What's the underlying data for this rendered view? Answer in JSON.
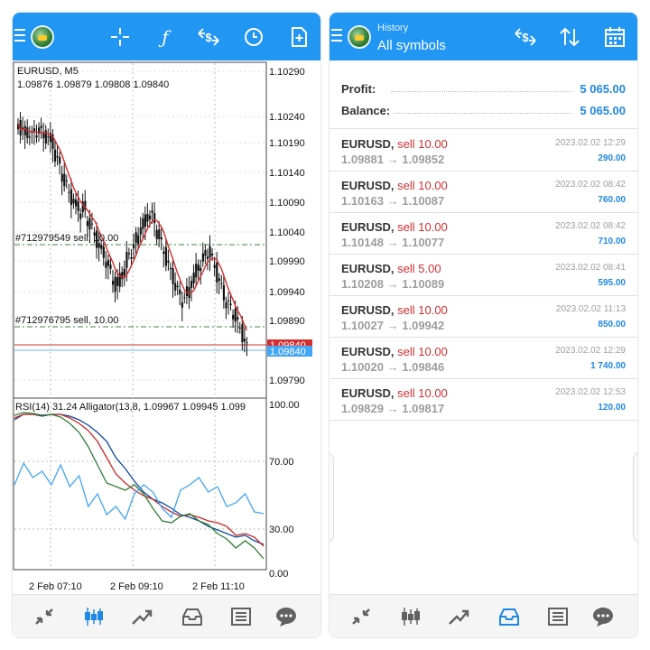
{
  "left": {
    "symbol_line": "EURUSD, M5",
    "ohlc_line": "1.09876 1.09879 1.09808 1.09840",
    "price_ticks": [
      "1.10290",
      "1.10240",
      "1.10190",
      "1.10140",
      "1.10090",
      "1.10040",
      "1.09990",
      "1.09940",
      "1.09890",
      "1.09790"
    ],
    "order_line_1": "#712979549 sell, 10.00",
    "order_line_2": "#712976795 sell, 10.00",
    "bid_tag": "1.09840",
    "ask_tag": "1.09840",
    "indicator_line": "RSI(14) 31.24 Alligator(13,8, 1.09967 1.09945 1.099",
    "rsi_ticks": [
      "100.00",
      "70.00",
      "30.00",
      "0.00"
    ],
    "time_ticks": [
      "2 Feb 07:10",
      "2 Feb 09:10",
      "2 Feb 11:10"
    ],
    "toolbar_icons": [
      "menu-icon",
      "crosshair-icon",
      "function-icon",
      "dollar-exchange-icon",
      "clock-icon",
      "new-order-icon"
    ],
    "nav_icons": [
      "quotes-icon",
      "chart-icon",
      "trade-icon",
      "history-icon",
      "news-icon",
      "chat-icon"
    ],
    "colors": {
      "accent": "#2196f3",
      "sell": "#d32f2f",
      "profit": "#1e88e5"
    }
  },
  "right": {
    "header_title": "History",
    "header_sub": "All symbols",
    "profit_label": "Profit:",
    "profit_value": "5 065.00",
    "balance_label": "Balance:",
    "balance_value": "5 065.00",
    "deals": [
      {
        "symbol": "EURUSD,",
        "side": " sell 10.00",
        "open": "1.09881",
        "close": "1.09852",
        "date": "2023.02.02 12:29",
        "pl": "290.00"
      },
      {
        "symbol": "EURUSD,",
        "side": " sell 10.00",
        "open": "1.10163",
        "close": "1.10087",
        "date": "2023.02.02 08:42",
        "pl": "760.00"
      },
      {
        "symbol": "EURUSD,",
        "side": " sell 10.00",
        "open": "1.10148",
        "close": "1.10077",
        "date": "2023.02.02 08:42",
        "pl": "710.00"
      },
      {
        "symbol": "EURUSD,",
        "side": " sell 5.00",
        "open": "1.10208",
        "close": "1.10089",
        "date": "2023.02.02 08:41",
        "pl": "595.00"
      },
      {
        "symbol": "EURUSD,",
        "side": " sell 10.00",
        "open": "1.10027",
        "close": "1.09942",
        "date": "2023.02.02 11:13",
        "pl": "850.00"
      },
      {
        "symbol": "EURUSD,",
        "side": " sell 10.00",
        "open": "1.10020",
        "close": "1.09846",
        "date": "2023.02.02 12:29",
        "pl": "1 740.00"
      },
      {
        "symbol": "EURUSD,",
        "side": " sell 10.00",
        "open": "1.09829",
        "close": "1.09817",
        "date": "2023.02.02 12:53",
        "pl": "120.00"
      }
    ],
    "arrow": "→"
  }
}
